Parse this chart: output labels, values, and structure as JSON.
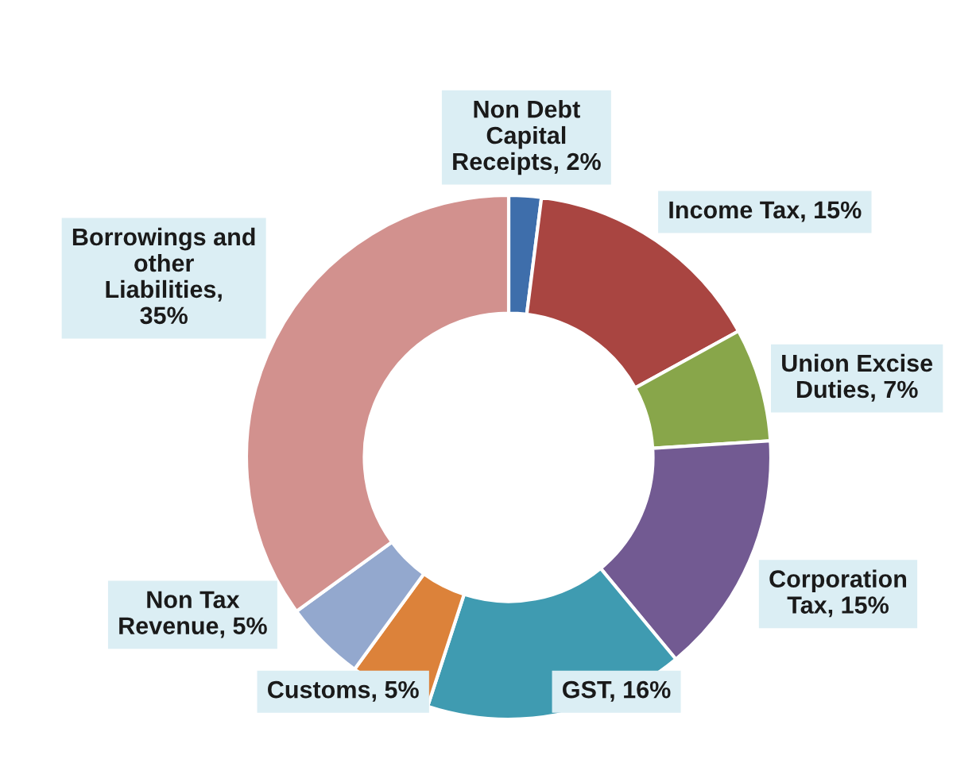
{
  "chart_data": {
    "type": "donut",
    "categories": [
      "Non Debt Capital Receipts, 2%",
      "Income Tax, 15%",
      "Union Excise Duties, 7%",
      "Corporation Tax, 15%",
      "GST, 16%",
      "Customs, 5%",
      "Non Tax Revenue, 5%",
      "Borrowings and other Liabilities, 35%"
    ],
    "values": [
      2,
      15,
      7,
      15,
      16,
      5,
      5,
      35
    ],
    "colors": [
      "#3e6eab",
      "#a94541",
      "#88a64a",
      "#725a92",
      "#3f9bb1",
      "#dc823a",
      "#93a8ce",
      "#d2918e"
    ],
    "legend": false
  }
}
